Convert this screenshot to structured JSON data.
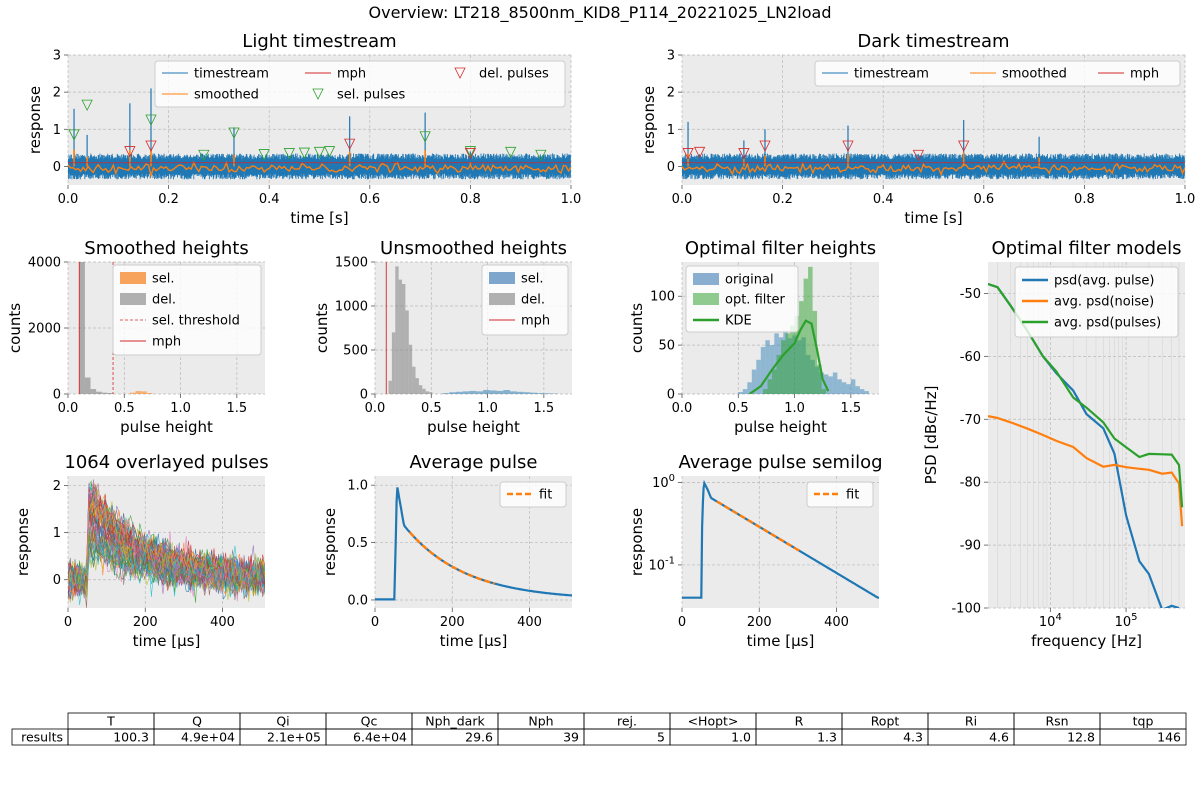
{
  "figure_title": "Overview: LT218_8500nm_KID8_P114_20221025_LN2load",
  "colors": {
    "blue": "#1f77b4",
    "orange": "#ff7f0e",
    "green": "#2ca02c",
    "red": "#d62728",
    "grey": "#a0a0a0",
    "bg": "#ebebeb",
    "grid": "#b9b9b9"
  },
  "chart_data": [
    {
      "id": "light",
      "type": "line",
      "title": "Light timestream",
      "xlabel": "time [s]",
      "ylabel": "response",
      "xlim": [
        0,
        1
      ],
      "ylim": [
        -0.5,
        3
      ],
      "xticks": [
        0,
        0.2,
        0.4,
        0.6,
        0.8,
        1.0
      ],
      "xtick_labels": [
        "0.0",
        "0.2",
        "0.4",
        "0.6",
        "0.8",
        "1.0"
      ],
      "yticks": [
        0,
        1,
        2,
        3
      ],
      "ytick_labels": [
        "0",
        "1",
        "2",
        "3"
      ],
      "noise_band": [
        -0.35,
        0.35
      ],
      "pulse_times": [
        0.012,
        0.038,
        0.123,
        0.165,
        0.33,
        0.56,
        0.71,
        0.8
      ],
      "pulse_heights": [
        1.55,
        0.85,
        1.7,
        2.1,
        1.05,
        1.35,
        1.45,
        0.4
      ],
      "mph": 0.1,
      "sel_pulses": {
        "x": [
          0.012,
          0.038,
          0.165,
          0.33,
          0.71,
          0.8,
          0.52,
          0.5,
          0.47,
          0.44,
          0.88,
          0.94,
          0.39,
          0.27
        ],
        "y": [
          0.85,
          1.65,
          1.25,
          0.9,
          0.8,
          0.4,
          0.4,
          0.38,
          0.36,
          0.35,
          0.38,
          0.3,
          0.32,
          0.3
        ]
      },
      "del_pulses": {
        "x": [
          0.123,
          0.165,
          0.56,
          0.8
        ],
        "y": [
          0.4,
          0.55,
          0.6,
          0.35
        ]
      },
      "legend": [
        "timestream",
        "smoothed",
        "mph",
        "sel. pulses",
        "del. pulses"
      ]
    },
    {
      "id": "dark",
      "type": "line",
      "title": "Dark timestream",
      "xlabel": "time [s]",
      "ylabel": "response",
      "xlim": [
        0,
        1
      ],
      "ylim": [
        -0.5,
        3
      ],
      "xticks": [
        0,
        0.2,
        0.4,
        0.6,
        0.8,
        1.0
      ],
      "xtick_labels": [
        "0.0",
        "0.2",
        "0.4",
        "0.6",
        "0.8",
        "1.0"
      ],
      "yticks": [
        0,
        1,
        2,
        3
      ],
      "ytick_labels": [
        "0",
        "1",
        "2",
        "3"
      ],
      "noise_band": [
        -0.35,
        0.35
      ],
      "pulse_times": [
        0.012,
        0.123,
        0.165,
        0.33,
        0.56,
        0.71
      ],
      "pulse_heights": [
        1.2,
        0.7,
        1.0,
        1.1,
        1.25,
        0.8
      ],
      "mph": 0.1,
      "del_pulses": {
        "x": [
          0.012,
          0.035,
          0.123,
          0.165,
          0.33,
          0.56,
          0.47
        ],
        "y": [
          0.35,
          0.38,
          0.35,
          0.55,
          0.55,
          0.55,
          0.3
        ]
      },
      "legend": [
        "timestream",
        "smoothed",
        "mph"
      ]
    },
    {
      "id": "smoothed",
      "type": "bar",
      "title": "Smoothed heights",
      "xlabel": "pulse height",
      "ylabel": "counts",
      "xlim": [
        0,
        1.75
      ],
      "ylim": [
        0,
        4000
      ],
      "xticks": [
        0,
        0.5,
        1.0,
        1.5
      ],
      "xtick_labels": [
        "0.0",
        "0.5",
        "1.0",
        "1.5"
      ],
      "yticks": [
        0,
        2000,
        4000
      ],
      "ytick_labels": [
        "0",
        "2000",
        "4000"
      ],
      "bin_width": 0.05,
      "del_bins": {
        "x": [
          0.1,
          0.15,
          0.2,
          0.25,
          0.3,
          0.35
        ],
        "counts": [
          4000,
          500,
          150,
          70,
          40,
          30
        ]
      },
      "sel_bins": {
        "x": [
          0.55,
          0.6,
          0.65,
          0.7
        ],
        "counts": [
          40,
          90,
          80,
          30
        ]
      },
      "sel_threshold": 0.4,
      "mph": 0.1,
      "legend": [
        "sel.",
        "del.",
        "sel. threshold",
        "mph"
      ]
    },
    {
      "id": "unsmoothed",
      "type": "bar",
      "title": "Unsmoothed heights",
      "xlabel": "pulse height",
      "ylabel": "counts",
      "xlim": [
        0,
        1.75
      ],
      "ylim": [
        0,
        1500
      ],
      "xticks": [
        0,
        0.5,
        1.0,
        1.5
      ],
      "xtick_labels": [
        "0.0",
        "0.5",
        "1.0",
        "1.5"
      ],
      "yticks": [
        0,
        500,
        1000,
        1500
      ],
      "ytick_labels": [
        "0",
        "500",
        "1000",
        "1500"
      ],
      "bin_width": 0.03,
      "del_bins": {
        "x": [
          0.12,
          0.15,
          0.18,
          0.21,
          0.24,
          0.27,
          0.3,
          0.33,
          0.36,
          0.39,
          0.42,
          0.45,
          0.48
        ],
        "counts": [
          150,
          700,
          1450,
          1300,
          1250,
          950,
          560,
          310,
          180,
          100,
          60,
          30,
          20
        ]
      },
      "sel_bins": {
        "x": [
          0.6,
          0.66,
          0.72,
          0.78,
          0.84,
          0.9,
          0.96,
          1.02,
          1.08,
          1.14,
          1.2,
          1.26,
          1.32,
          1.38,
          1.44,
          1.5,
          1.56
        ],
        "counts": [
          10,
          20,
          25,
          30,
          35,
          30,
          45,
          40,
          35,
          45,
          30,
          25,
          20,
          15,
          10,
          8,
          5
        ]
      },
      "mph": 0.1,
      "legend": [
        "sel.",
        "del.",
        "mph"
      ]
    },
    {
      "id": "optfilter",
      "type": "bar",
      "title": "Optimal filter heights",
      "xlabel": "pulse height",
      "ylabel": "counts",
      "xlim": [
        0,
        1.75
      ],
      "ylim": [
        0,
        135
      ],
      "xticks": [
        0,
        0.5,
        1.0,
        1.5
      ],
      "xtick_labels": [
        "0.0",
        "0.5",
        "1.0",
        "1.5"
      ],
      "yticks": [
        0,
        50,
        100
      ],
      "ytick_labels": [
        "0",
        "50",
        "100"
      ],
      "bin_width": 0.04,
      "original_bins": {
        "x": [
          0.5,
          0.54,
          0.58,
          0.62,
          0.66,
          0.7,
          0.74,
          0.78,
          0.82,
          0.86,
          0.9,
          0.94,
          0.98,
          1.02,
          1.06,
          1.1,
          1.14,
          1.18,
          1.22,
          1.26,
          1.3,
          1.34,
          1.38,
          1.42,
          1.46,
          1.5,
          1.54,
          1.58,
          1.62
        ],
        "counts": [
          2,
          5,
          12,
          25,
          35,
          48,
          55,
          50,
          62,
          58,
          65,
          57,
          60,
          55,
          58,
          40,
          35,
          28,
          22,
          20,
          18,
          22,
          15,
          12,
          10,
          15,
          8,
          5,
          3
        ]
      },
      "opt_bins": {
        "x": [
          0.72,
          0.76,
          0.8,
          0.84,
          0.88,
          0.92,
          0.96,
          1.0,
          1.04,
          1.08,
          1.12,
          1.16,
          1.2,
          1.24
        ],
        "counts": [
          5,
          15,
          25,
          40,
          55,
          62,
          70,
          80,
          95,
          118,
          130,
          85,
          30,
          5
        ]
      },
      "kde": {
        "x": [
          0.6,
          0.7,
          0.8,
          0.9,
          1.0,
          1.05,
          1.1,
          1.15,
          1.2,
          1.25,
          1.3
        ],
        "y": [
          0,
          8,
          25,
          40,
          52,
          65,
          75,
          72,
          45,
          15,
          3
        ]
      },
      "legend": [
        "original",
        "opt. filter",
        "KDE"
      ]
    },
    {
      "id": "models",
      "type": "line",
      "title": "Optimal filter models",
      "xlabel": "frequency [Hz]",
      "ylabel": "PSD [dBc/Hz]",
      "xscale": "log",
      "xlim": [
        1500,
        600000
      ],
      "ylim": [
        -100,
        -45
      ],
      "xticks": [
        10000,
        100000
      ],
      "xtick_labels": [
        "10^4",
        "10^5"
      ],
      "yticks": [
        -100,
        -90,
        -80,
        -70,
        -60,
        -50
      ],
      "ytick_labels": [
        "-100",
        "-90",
        "-80",
        "-70",
        "-60",
        "-50"
      ],
      "series": [
        {
          "name": "psd(avg. pulse)",
          "x": [
            1500,
            2000,
            3000,
            5000,
            8000,
            12000,
            20000,
            30000,
            50000,
            70000,
            100000,
            150000,
            200000,
            300000,
            400000,
            500000
          ],
          "y": [
            -48.5,
            -49,
            -52,
            -56,
            -60,
            -63,
            -66,
            -69,
            -72,
            -76,
            -85,
            -92,
            -95,
            -99,
            -100,
            -100
          ]
        },
        {
          "name": "avg. psd(noise)",
          "x": [
            1500,
            2000,
            3000,
            5000,
            8000,
            12000,
            20000,
            30000,
            50000,
            70000,
            100000,
            150000,
            200000,
            300000,
            400000,
            500000,
            550000
          ],
          "y": [
            -69.5,
            -69.8,
            -70.5,
            -71.5,
            -72.5,
            -73.5,
            -74.5,
            -76,
            -77,
            -77.5,
            -78,
            -78.2,
            -78.3,
            -78.5,
            -78.6,
            -80,
            -87
          ]
        },
        {
          "name": "avg. psd(pulses)",
          "x": [
            1500,
            2000,
            3000,
            5000,
            8000,
            12000,
            20000,
            30000,
            50000,
            70000,
            100000,
            150000,
            200000,
            300000,
            400000,
            500000,
            550000
          ],
          "y": [
            -48.5,
            -49,
            -52,
            -56,
            -60,
            -63,
            -66,
            -68,
            -71,
            -73,
            -75,
            -75.5,
            -75.8,
            -76,
            -76,
            -77,
            -84
          ]
        }
      ],
      "legend": [
        "psd(avg. pulse)",
        "avg. psd(noise)",
        "avg. psd(pulses)"
      ]
    },
    {
      "id": "overlay",
      "type": "line",
      "title": "1064 overlayed pulses",
      "xlabel": "time [$\\mu$s]",
      "ylabel": "response",
      "xlim": [
        0,
        510
      ],
      "ylim": [
        -0.6,
        2.2
      ],
      "xticks": [
        0,
        200,
        400
      ],
      "xtick_labels": [
        "0",
        "200",
        "400"
      ],
      "yticks": [
        0,
        1,
        2
      ],
      "ytick_labels": [
        "0",
        "1",
        "2"
      ],
      "pulse_count": 1064,
      "onset": 50,
      "peak_max": 2.1,
      "tau": 150
    },
    {
      "id": "avgpulse",
      "type": "line",
      "title": "Average pulse",
      "xlabel": "time [$\\mu$s]",
      "ylabel": "response",
      "xlim": [
        0,
        510
      ],
      "ylim": [
        -0.07,
        1.08
      ],
      "xticks": [
        0,
        200,
        400
      ],
      "xtick_labels": [
        "0",
        "200",
        "400"
      ],
      "yticks": [
        0,
        0.5,
        1.0
      ],
      "ytick_labels": [
        "0.0",
        "0.5",
        "1.0"
      ],
      "onset": 50,
      "peak_time": 57,
      "tau": 155,
      "fit_range": [
        90,
        310
      ],
      "legend": [
        "fit"
      ]
    },
    {
      "id": "semilog",
      "type": "line",
      "title": "Average pulse semilog",
      "xlabel": "time [$\\mu$s]",
      "ylabel": "response",
      "yscale": "log",
      "xlim": [
        0,
        510
      ],
      "ylim": [
        0.03,
        1.2
      ],
      "xticks": [
        0,
        200,
        400
      ],
      "xtick_labels": [
        "0",
        "200",
        "400"
      ],
      "yticks": [
        0.1,
        1
      ],
      "ytick_labels": [
        "10^-1",
        "10^0"
      ],
      "onset": 50,
      "peak_time": 57,
      "tau": 155,
      "fit_range": [
        90,
        310
      ],
      "legend": [
        "fit"
      ]
    }
  ],
  "results_table": {
    "columns": [
      "T",
      "Q",
      "Qi",
      "Qc",
      "Nph_dark",
      "Nph",
      "rej.",
      "<Hopt>",
      "R",
      "Ropt",
      "Ri",
      "Rsn",
      "tqp"
    ],
    "row_label": "results",
    "values": [
      "100.3",
      "4.9e+04",
      "2.1e+05",
      "6.4e+04",
      "29.6",
      "39",
      "5",
      "1.0",
      "1.3",
      "4.3",
      "4.6",
      "12.8",
      "146"
    ]
  }
}
